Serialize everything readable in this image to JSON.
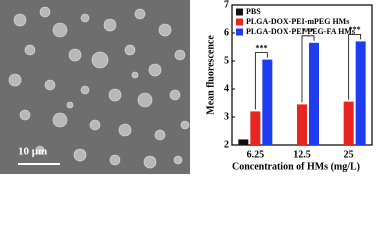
{
  "micrograph": {
    "scale_label": "10 μm"
  },
  "chart_data": {
    "type": "bar",
    "ylabel": "Mean fluorescence",
    "xlabel": "Concentration of HMs (mg/L)",
    "categories": [
      "6.25",
      "12.5",
      "25"
    ],
    "series": [
      {
        "name": "PBS",
        "color": "#111111",
        "values": [
          2.2,
          null,
          null
        ]
      },
      {
        "name": "PLGA-DOX-PEI-mPEG HMs",
        "color": "#e8251f",
        "values": [
          3.2,
          3.45,
          3.55
        ]
      },
      {
        "name": "PLGA-DOX-PEI-PEG-FA HMs",
        "color": "#1e3cf0",
        "values": [
          5.05,
          5.65,
          5.7
        ]
      }
    ],
    "annotations": [
      "***",
      "***",
      "***"
    ],
    "ylim": [
      2,
      7
    ],
    "yticks": [
      2,
      3,
      4,
      5,
      6,
      7
    ],
    "legend": "upper left"
  }
}
